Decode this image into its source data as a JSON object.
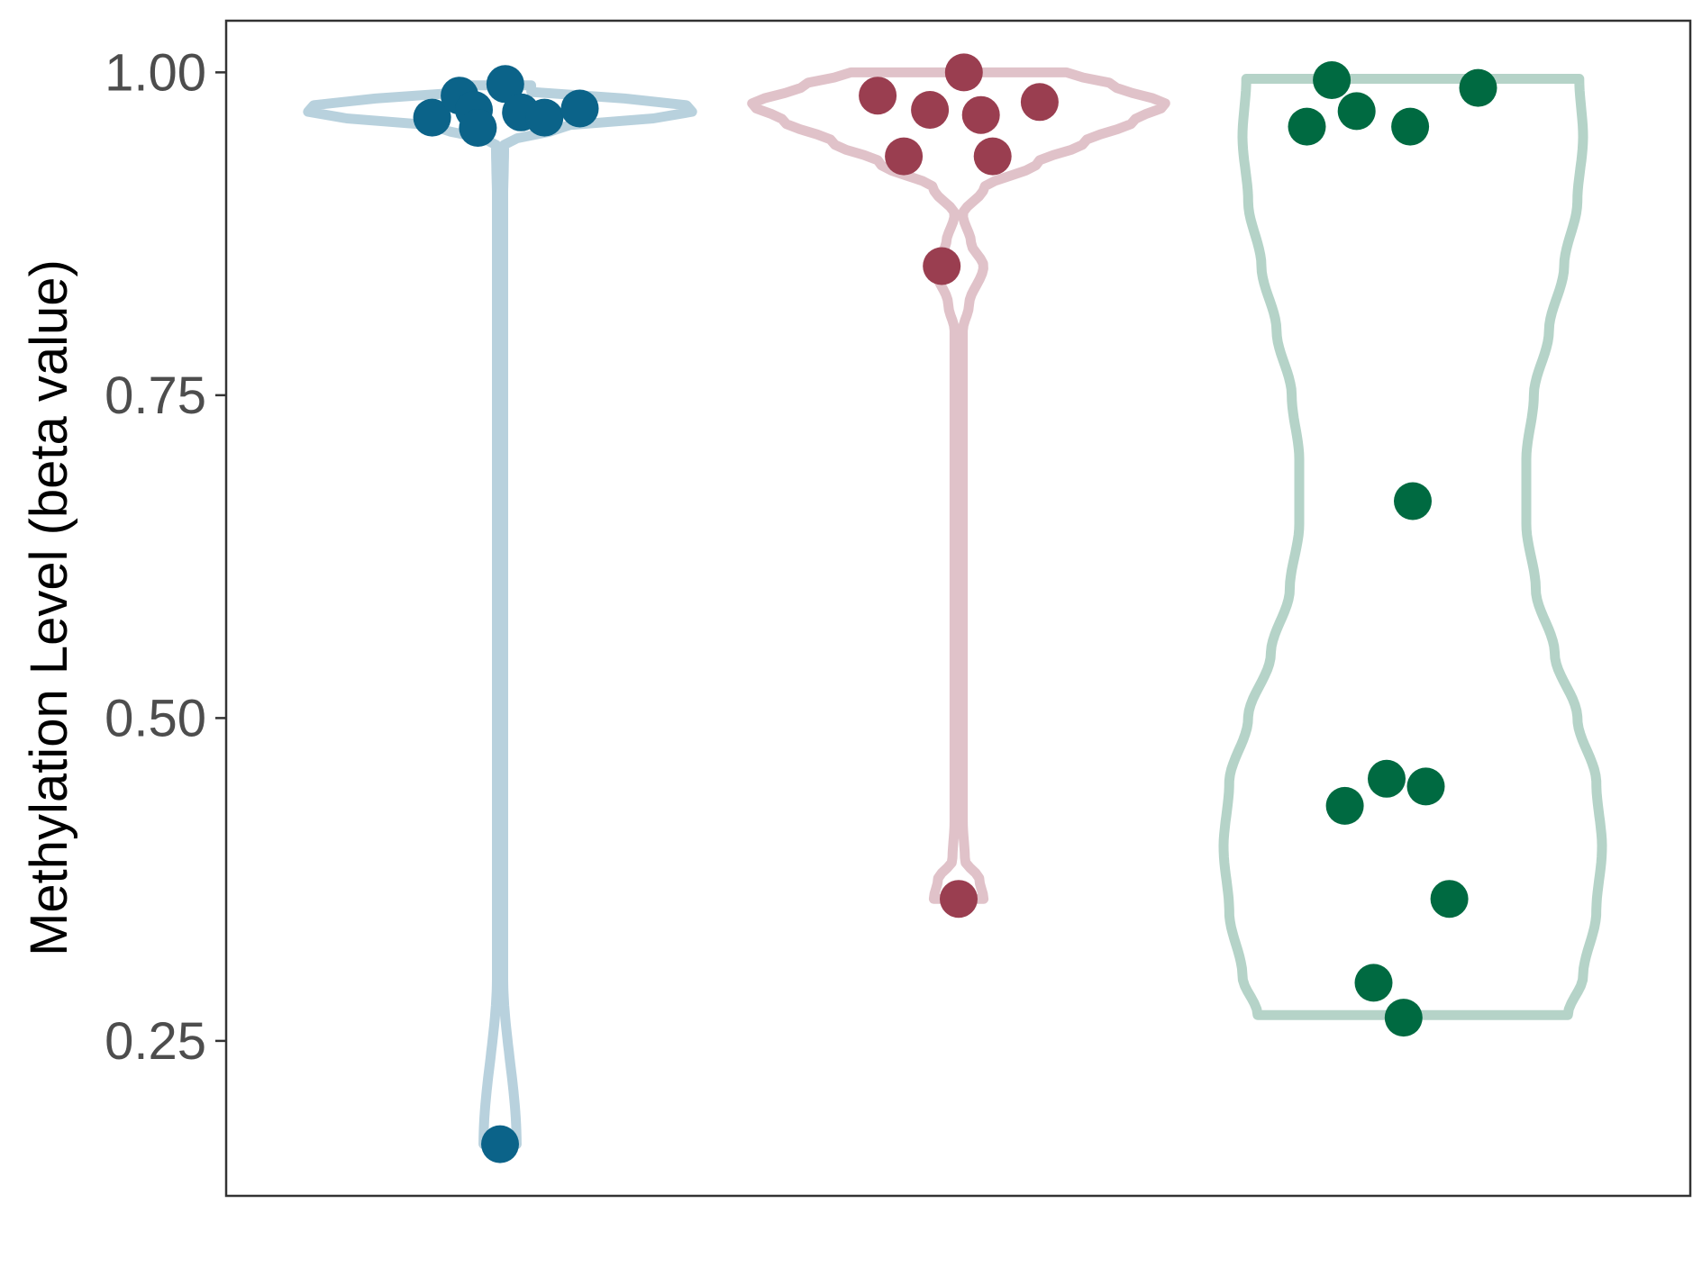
{
  "chart_data": {
    "type": "violin",
    "title": "",
    "xlabel": "",
    "ylabel": "Methylation Level (beta value)",
    "ylim": [
      0.13,
      1.04
    ],
    "yticks": [
      0.25,
      0.5,
      0.75,
      1.0
    ],
    "ytick_labels": [
      "0.25",
      "0.50",
      "0.75",
      "1.00"
    ],
    "grid": false,
    "legend": "none",
    "series": [
      {
        "violin_color": "#b8d1dd",
        "point_color": "#0b6389",
        "min": 0.17,
        "max": 0.99,
        "density": [
          [
            0.17,
            0.08
          ],
          [
            0.3,
            0.015
          ],
          [
            0.6,
            0.015
          ],
          [
            0.9,
            0.015
          ],
          [
            0.945,
            0.02
          ],
          [
            0.958,
            0.3
          ],
          [
            0.965,
            0.75
          ],
          [
            0.972,
            1.0
          ],
          [
            0.98,
            0.6
          ],
          [
            0.985,
            0.15
          ],
          [
            0.99,
            0.15
          ]
        ],
        "points": [
          {
            "jitter": -0.52,
            "y": 0.965
          },
          {
            "jitter": -0.31,
            "y": 0.982
          },
          {
            "jitter": -0.2,
            "y": 0.971
          },
          {
            "jitter": -0.17,
            "y": 0.957
          },
          {
            "jitter": 0.04,
            "y": 0.991
          },
          {
            "jitter": 0.16,
            "y": 0.969
          },
          {
            "jitter": 0.34,
            "y": 0.965
          },
          {
            "jitter": 0.61,
            "y": 0.972
          },
          {
            "jitter": 0.0,
            "y": 0.17
          }
        ]
      },
      {
        "violin_color": "#e0c2c9",
        "point_color": "#9a3e50",
        "min": 0.36,
        "max": 1.0,
        "density": [
          [
            0.36,
            0.12
          ],
          [
            0.375,
            0.1
          ],
          [
            0.39,
            0.03
          ],
          [
            0.42,
            0.02
          ],
          [
            0.6,
            0.02
          ],
          [
            0.8,
            0.02
          ],
          [
            0.82,
            0.05
          ],
          [
            0.85,
            0.12
          ],
          [
            0.868,
            0.06
          ],
          [
            0.89,
            0.02
          ],
          [
            0.91,
            0.12
          ],
          [
            0.93,
            0.38
          ],
          [
            0.945,
            0.6
          ],
          [
            0.963,
            0.85
          ],
          [
            0.975,
            1.0
          ],
          [
            0.99,
            0.75
          ],
          [
            1.0,
            0.52
          ]
        ],
        "points": [
          {
            "jitter": -0.62,
            "y": 0.982
          },
          {
            "jitter": -0.42,
            "y": 0.935
          },
          {
            "jitter": -0.22,
            "y": 0.971
          },
          {
            "jitter": -0.13,
            "y": 0.85
          },
          {
            "jitter": 0.04,
            "y": 1.0
          },
          {
            "jitter": 0.17,
            "y": 0.967
          },
          {
            "jitter": 0.26,
            "y": 0.935
          },
          {
            "jitter": 0.62,
            "y": 0.977
          },
          {
            "jitter": 0.0,
            "y": 0.36
          }
        ]
      },
      {
        "violin_color": "#b5d3c8",
        "point_color": "#006a41",
        "min": 0.27,
        "max": 0.995,
        "density": [
          [
            0.27,
            0.82
          ],
          [
            0.3,
            0.9
          ],
          [
            0.35,
            0.97
          ],
          [
            0.4,
            1.0
          ],
          [
            0.45,
            0.97
          ],
          [
            0.5,
            0.87
          ],
          [
            0.55,
            0.75
          ],
          [
            0.6,
            0.65
          ],
          [
            0.65,
            0.6
          ],
          [
            0.7,
            0.6
          ],
          [
            0.75,
            0.64
          ],
          [
            0.8,
            0.72
          ],
          [
            0.85,
            0.8
          ],
          [
            0.9,
            0.87
          ],
          [
            0.95,
            0.9
          ],
          [
            0.995,
            0.88
          ]
        ],
        "points": [
          {
            "jitter": -0.81,
            "y": 0.958
          },
          {
            "jitter": -0.62,
            "y": 0.994
          },
          {
            "jitter": -0.43,
            "y": 0.97
          },
          {
            "jitter": -0.02,
            "y": 0.958
          },
          {
            "jitter": 0.5,
            "y": 0.988
          },
          {
            "jitter": 0.0,
            "y": 0.668
          },
          {
            "jitter": -0.52,
            "y": 0.432
          },
          {
            "jitter": -0.2,
            "y": 0.453
          },
          {
            "jitter": 0.1,
            "y": 0.447
          },
          {
            "jitter": 0.28,
            "y": 0.36
          },
          {
            "jitter": -0.3,
            "y": 0.295
          },
          {
            "jitter": -0.07,
            "y": 0.268
          }
        ]
      }
    ]
  }
}
